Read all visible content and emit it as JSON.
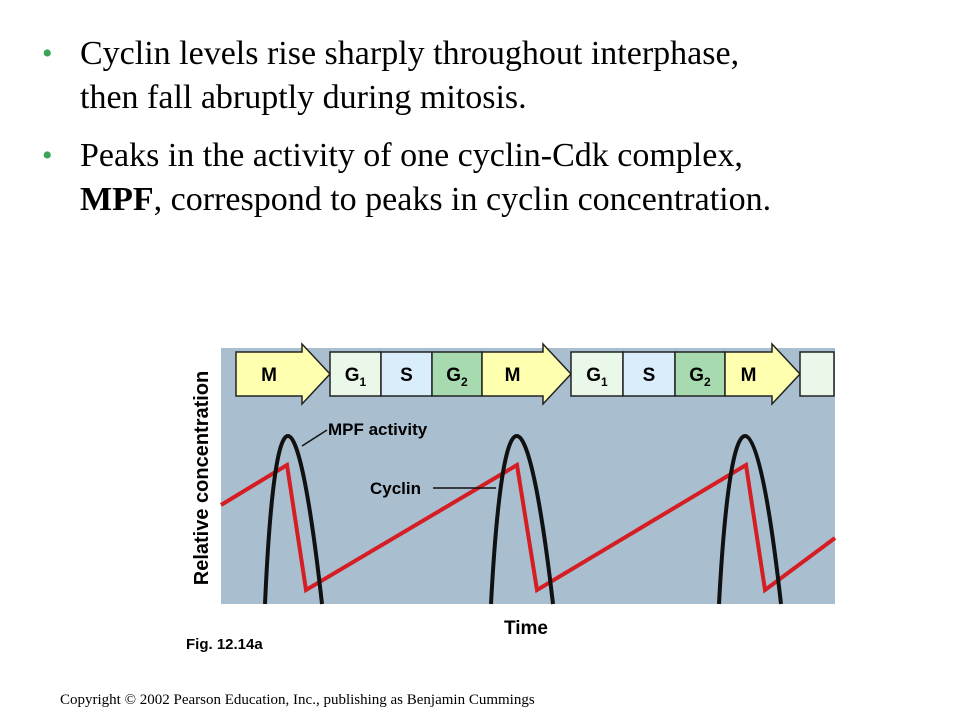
{
  "bullets": [
    {
      "text_line1": "Cyclin levels rise sharply throughout interphase,",
      "text_line2": "then fall abruptly during mitosis."
    },
    {
      "text_line1": "Peaks in the activity of one cyclin-Cdk complex,",
      "bold": "MPF",
      "text_line2_rest": ", correspond to peaks in cyclin concentration."
    }
  ],
  "diagram": {
    "ylabel": "Relative concentration",
    "xlabel": "Time",
    "phases": [
      {
        "label": "M",
        "sub": "",
        "color": "#ffffb0",
        "arrow": true
      },
      {
        "label": "G",
        "sub": "1",
        "color": "#eaf8ea",
        "arrow": false
      },
      {
        "label": "S",
        "sub": "",
        "color": "#d9eefa",
        "arrow": false
      },
      {
        "label": "G",
        "sub": "2",
        "color": "#a8dab0",
        "arrow": false
      },
      {
        "label": "M",
        "sub": "",
        "color": "#ffffb0",
        "arrow": true
      },
      {
        "label": "G",
        "sub": "1",
        "color": "#eaf8ea",
        "arrow": false
      },
      {
        "label": "S",
        "sub": "",
        "color": "#d9eefa",
        "arrow": false
      },
      {
        "label": "G",
        "sub": "2",
        "color": "#a8dab0",
        "arrow": false
      },
      {
        "label": "M",
        "sub": "",
        "color": "#ffffb0",
        "arrow": true
      },
      {
        "label": "",
        "sub": "",
        "color": "#eaf8ea",
        "arrow": false
      }
    ],
    "mpf_label": "MPF activity",
    "cyclin_label": "Cyclin",
    "colors": {
      "panel": "#a9bfd0",
      "mpf": "#111111",
      "cyclin": "#d41e24"
    }
  },
  "figure_caption": "Fig. 12.14a",
  "copyright": "Copyright © 2002 Pearson Education, Inc., publishing as Benjamin Cummings"
}
